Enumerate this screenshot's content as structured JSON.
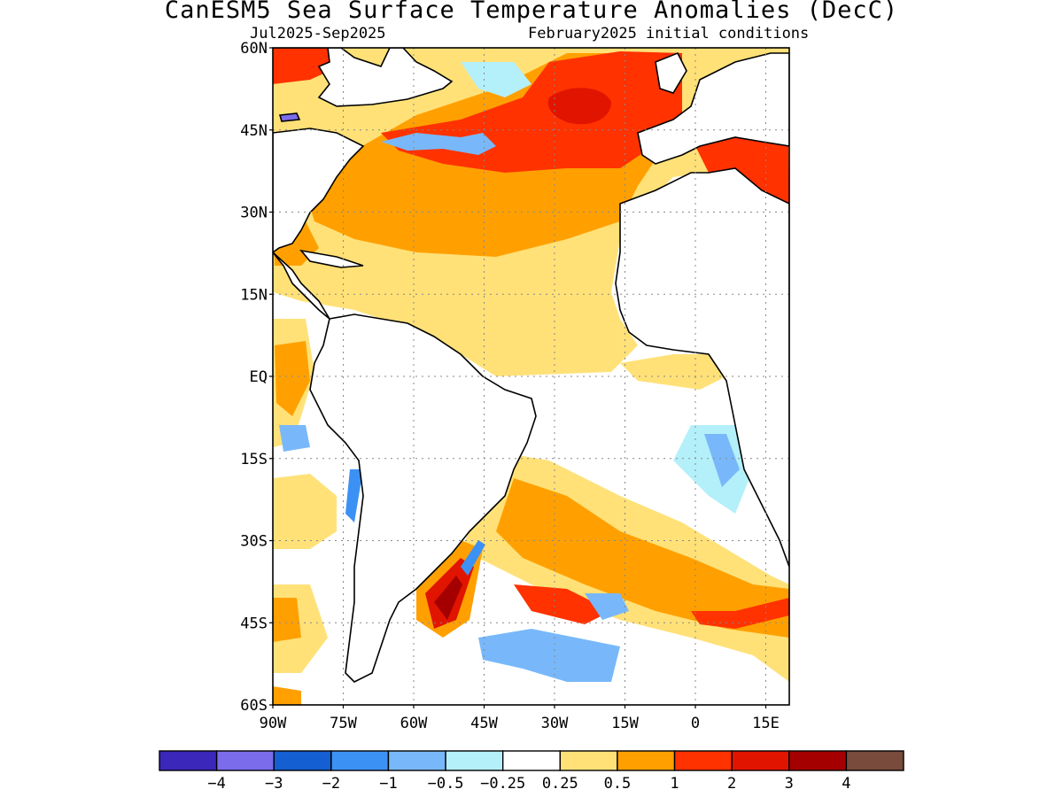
{
  "title": "CanESM5 Sea Surface Temperature Anomalies (DecC)",
  "subtitle_left": "Jul2025-Sep2025",
  "subtitle_right": "February2025 initial conditions",
  "lat_ticks": [
    {
      "label": "60N",
      "lat": 60
    },
    {
      "label": "45N",
      "lat": 45
    },
    {
      "label": "30N",
      "lat": 30
    },
    {
      "label": "15N",
      "lat": 15
    },
    {
      "label": "EQ",
      "lat": 0
    },
    {
      "label": "15S",
      "lat": -15
    },
    {
      "label": "30S",
      "lat": -30
    },
    {
      "label": "45S",
      "lat": -45
    },
    {
      "label": "60S",
      "lat": -60
    }
  ],
  "lon_ticks": [
    {
      "label": "90W",
      "lon": -90
    },
    {
      "label": "75W",
      "lon": -75
    },
    {
      "label": "60W",
      "lon": -60
    },
    {
      "label": "45W",
      "lon": -45
    },
    {
      "label": "30W",
      "lon": -30
    },
    {
      "label": "15W",
      "lon": -15
    },
    {
      "label": "0",
      "lon": 0
    },
    {
      "label": "15E",
      "lon": 15
    }
  ],
  "colorbar": {
    "colors": [
      "#3b27ba",
      "#7b6cec",
      "#145fd2",
      "#3c91f5",
      "#78b8fa",
      "#b4f0fa",
      "#ffffff",
      "#ffe178",
      "#ffa000",
      "#ff3200",
      "#e11400",
      "#a50000",
      "#784b3c"
    ],
    "labels": [
      "-4",
      "-3",
      "-2",
      "-1",
      "-0.5",
      "-0.25",
      "0.25",
      "0.5",
      "1",
      "2",
      "3",
      "4"
    ]
  }
}
